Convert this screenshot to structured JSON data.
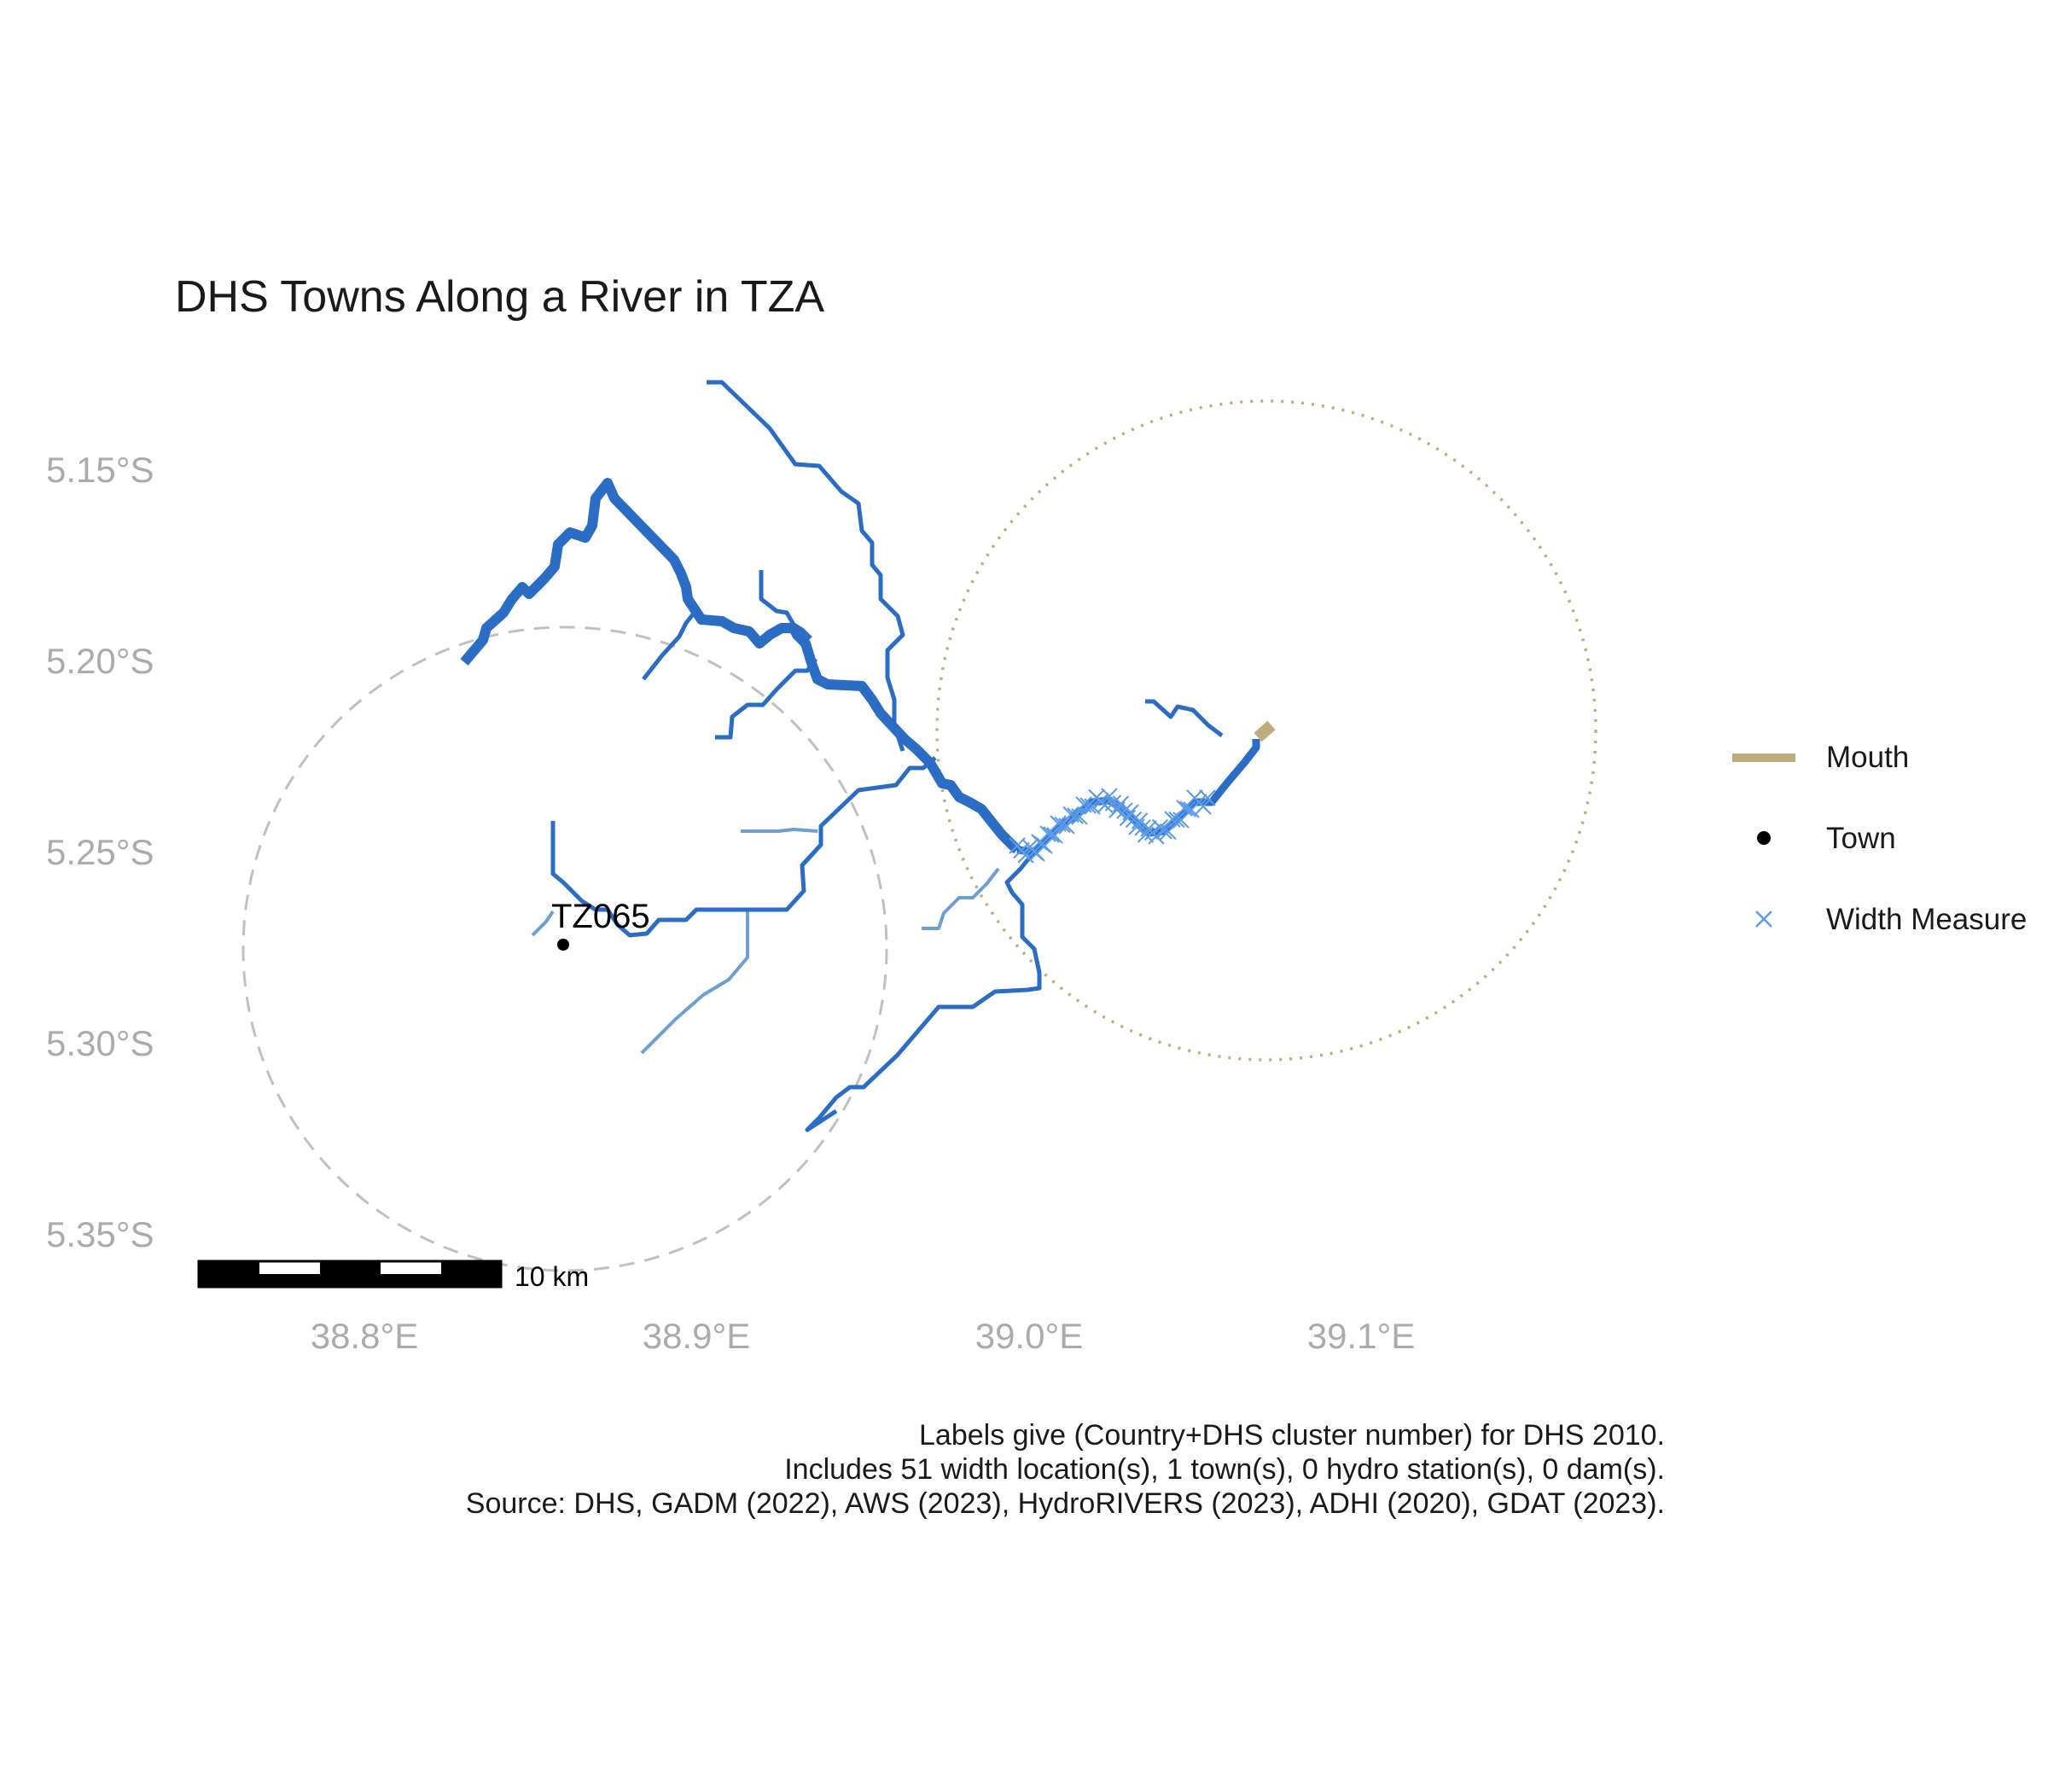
{
  "title": "DHS Towns Along a River in TZA",
  "lat_ticks": [
    {
      "value": -5.15,
      "label": "5.15°S"
    },
    {
      "value": -5.2,
      "label": "5.20°S"
    },
    {
      "value": -5.25,
      "label": "5.25°S"
    },
    {
      "value": -5.3,
      "label": "5.30°S"
    },
    {
      "value": -5.35,
      "label": "5.35°S"
    }
  ],
  "lon_ticks": [
    {
      "value": 38.8,
      "label": "38.8°E"
    },
    {
      "value": 38.9,
      "label": "38.9°E"
    },
    {
      "value": 39.0,
      "label": "39.0°E"
    },
    {
      "value": 39.1,
      "label": "39.1°E"
    }
  ],
  "legend": [
    {
      "key": "mouth",
      "label": "Mouth"
    },
    {
      "key": "town",
      "label": "Town"
    },
    {
      "key": "width",
      "label": "Width Measure"
    }
  ],
  "town": {
    "label": "TZ065",
    "lon": 38.861,
    "lat": -5.274
  },
  "scale_bar": {
    "label": "10 km"
  },
  "caption": [
    "Labels give (Country+DHS cluster number) for DHS 2010.",
    "Includes 51 width location(s), 1 town(s), 0 hydro station(s), 0 dam(s).",
    "Source: DHS, GADM (2022), AWS (2023), HydroRIVERS (2023), ADHI (2020), GDAT (2023)."
  ],
  "colors": {
    "river": "#2b6cc4",
    "river_light": "#6b9fd6",
    "mouth": "#bdad7d",
    "width_marker": "#5b9be8",
    "town": "#000000",
    "buffer_town": "#c0c0c0",
    "axis_text": "#ababab"
  }
}
